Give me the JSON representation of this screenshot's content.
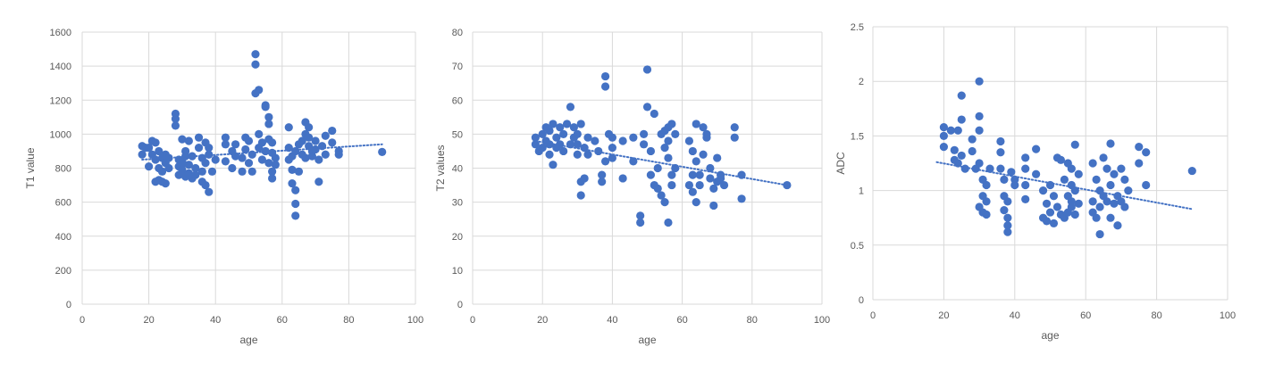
{
  "chart_data": [
    {
      "type": "scatter",
      "title": "",
      "xlabel": "age",
      "ylabel": "T1 value",
      "xlim": [
        0,
        100
      ],
      "ylim": [
        0,
        1600
      ],
      "xticks": [
        "0",
        "20",
        "40",
        "60",
        "80",
        "100"
      ],
      "yticks": [
        "0",
        "200",
        "400",
        "600",
        "800",
        "1000",
        "1200",
        "1400",
        "1600"
      ],
      "grid": true,
      "marker_color": "#4472C4",
      "trendline": {
        "style": "dotted-linear",
        "x": [
          18,
          90
        ],
        "y": [
          850,
          940
        ]
      },
      "series": [
        {
          "x": [
            18,
            18,
            19,
            20,
            20,
            21,
            21,
            22,
            22,
            22,
            23,
            23,
            23,
            24,
            24,
            24,
            25,
            25,
            25,
            26,
            26,
            28,
            28,
            28,
            29,
            29,
            29,
            30,
            30,
            30,
            30,
            31,
            31,
            31,
            32,
            32,
            32,
            33,
            33,
            34,
            34,
            35,
            35,
            36,
            36,
            36,
            37,
            37,
            37,
            38,
            38,
            38,
            39,
            40,
            43,
            43,
            43,
            45,
            45,
            46,
            46,
            48,
            48,
            49,
            49,
            50,
            50,
            51,
            51,
            52,
            52,
            52,
            53,
            53,
            53,
            54,
            54,
            55,
            55,
            55,
            56,
            56,
            56,
            56,
            57,
            57,
            57,
            57,
            58,
            58,
            62,
            62,
            62,
            63,
            63,
            63,
            64,
            64,
            64,
            64,
            65,
            65,
            66,
            66,
            67,
            67,
            67,
            68,
            68,
            68,
            69,
            69,
            70,
            70,
            71,
            71,
            72,
            73,
            73,
            75,
            75,
            77,
            77,
            90
          ],
          "y": [
            880,
            930,
            920,
            810,
            920,
            960,
            880,
            950,
            720,
            850,
            730,
            800,
            900,
            720,
            860,
            780,
            710,
            830,
            880,
            800,
            860,
            1120,
            1090,
            1050,
            850,
            760,
            810,
            970,
            840,
            820,
            790,
            900,
            750,
            870,
            960,
            770,
            820,
            740,
            870,
            800,
            760,
            980,
            920,
            860,
            720,
            780,
            950,
            700,
            830,
            920,
            660,
            880,
            780,
            850,
            980,
            840,
            940,
            900,
            800,
            870,
            940,
            780,
            860,
            980,
            910,
            830,
            960,
            880,
            780,
            1470,
            1410,
            1240,
            1000,
            1260,
            920,
            850,
            950,
            1160,
            1170,
            900,
            1100,
            1060,
            970,
            830,
            950,
            890,
            780,
            740,
            860,
            820,
            1040,
            920,
            850,
            790,
            710,
            870,
            670,
            590,
            520,
            900,
            940,
            780,
            960,
            880,
            1000,
            1070,
            860,
            930,
            980,
            1040,
            900,
            870,
            960,
            910,
            720,
            850,
            930,
            990,
            880,
            1020,
            950,
            880,
            900,
            895
          ]
        }
      ]
    },
    {
      "type": "scatter",
      "title": "",
      "xlabel": "age",
      "ylabel": "T2 values",
      "xlim": [
        0,
        100
      ],
      "ylim": [
        0,
        80
      ],
      "xticks": [
        "0",
        "20",
        "40",
        "60",
        "80",
        "100"
      ],
      "yticks": [
        "0",
        "10",
        "20",
        "30",
        "40",
        "50",
        "60",
        "70",
        "80"
      ],
      "grid": true,
      "marker_color": "#4472C4",
      "trendline": {
        "style": "dotted-linear",
        "x": [
          18,
          90
        ],
        "y": [
          48,
          35
        ]
      },
      "series": [
        {
          "x": [
            18,
            18,
            19,
            20,
            20,
            21,
            21,
            22,
            22,
            22,
            23,
            23,
            24,
            24,
            25,
            25,
            26,
            26,
            27,
            28,
            28,
            29,
            29,
            30,
            30,
            30,
            31,
            31,
            31,
            32,
            32,
            33,
            33,
            35,
            36,
            37,
            37,
            38,
            38,
            38,
            39,
            40,
            40,
            40,
            43,
            43,
            46,
            46,
            48,
            48,
            49,
            49,
            50,
            50,
            51,
            51,
            52,
            52,
            53,
            53,
            54,
            54,
            55,
            55,
            55,
            56,
            56,
            56,
            56,
            57,
            57,
            57,
            58,
            58,
            62,
            62,
            63,
            63,
            63,
            64,
            64,
            64,
            65,
            65,
            66,
            66,
            67,
            67,
            68,
            68,
            69,
            69,
            70,
            70,
            71,
            71,
            72,
            75,
            75,
            77,
            77,
            90
          ],
          "y": [
            47,
            49,
            45,
            46,
            50,
            48,
            52,
            44,
            47,
            51,
            41,
            53,
            46,
            49,
            47,
            52,
            45,
            50,
            53,
            58,
            47,
            49,
            52,
            44,
            50,
            47,
            36,
            32,
            53,
            37,
            46,
            44,
            49,
            48,
            45,
            38,
            36,
            67,
            64,
            42,
            50,
            49,
            46,
            43,
            48,
            37,
            49,
            42,
            26,
            24,
            47,
            50,
            69,
            58,
            45,
            38,
            56,
            35,
            34,
            40,
            50,
            32,
            51,
            46,
            30,
            24,
            52,
            48,
            43,
            38,
            35,
            53,
            50,
            40,
            48,
            35,
            45,
            38,
            33,
            53,
            42,
            30,
            35,
            38,
            44,
            52,
            49,
            50,
            37,
            40,
            34,
            29,
            36,
            43,
            37,
            38,
            35,
            52,
            49,
            38,
            31,
            35
          ]
        }
      ]
    },
    {
      "type": "scatter",
      "title": "",
      "xlabel": "age",
      "ylabel": "ADC",
      "xlim": [
        0,
        100
      ],
      "ylim": [
        0,
        2.5
      ],
      "xticks": [
        "0",
        "20",
        "40",
        "60",
        "80",
        "100"
      ],
      "yticks": [
        "0",
        "0.5",
        "1",
        "1.5",
        "2",
        "2.5"
      ],
      "grid": true,
      "marker_color": "#4472C4",
      "trendline": {
        "style": "dotted-linear",
        "x": [
          18,
          90
        ],
        "y": [
          1.26,
          0.83
        ]
      },
      "series": [
        {
          "x": [
            20,
            20,
            20,
            22,
            23,
            23,
            24,
            24,
            25,
            25,
            25,
            26,
            28,
            28,
            29,
            30,
            30,
            30,
            30,
            30,
            31,
            31,
            31,
            32,
            32,
            32,
            33,
            36,
            36,
            36,
            37,
            37,
            37,
            38,
            38,
            38,
            38,
            39,
            40,
            40,
            43,
            43,
            43,
            43,
            46,
            46,
            48,
            48,
            49,
            49,
            50,
            50,
            51,
            51,
            52,
            52,
            53,
            53,
            54,
            54,
            55,
            55,
            55,
            56,
            56,
            56,
            56,
            57,
            57,
            57,
            58,
            58,
            62,
            62,
            62,
            63,
            63,
            64,
            64,
            64,
            65,
            65,
            66,
            66,
            67,
            67,
            67,
            68,
            68,
            69,
            69,
            70,
            70,
            71,
            71,
            72,
            75,
            75,
            77,
            77,
            90
          ],
          "y": [
            1.58,
            1.5,
            1.4,
            1.55,
            1.37,
            1.28,
            1.55,
            1.25,
            1.87,
            1.65,
            1.32,
            1.2,
            1.47,
            1.36,
            1.2,
            2.0,
            1.68,
            1.55,
            1.25,
            0.85,
            1.1,
            0.95,
            0.8,
            1.05,
            0.9,
            0.78,
            1.2,
            1.45,
            1.35,
            1.2,
            1.1,
            0.95,
            0.82,
            0.9,
            0.75,
            0.68,
            0.62,
            1.17,
            1.1,
            1.05,
            1.3,
            1.2,
            1.05,
            0.92,
            1.38,
            1.15,
            1.0,
            0.75,
            0.88,
            0.72,
            1.05,
            0.8,
            0.95,
            0.7,
            1.3,
            0.85,
            1.28,
            0.78,
            1.1,
            0.75,
            1.25,
            0.95,
            0.8,
            1.2,
            1.05,
            0.9,
            0.85,
            1.42,
            1.0,
            0.78,
            1.15,
            0.88,
            1.25,
            0.9,
            0.8,
            1.1,
            0.75,
            1.0,
            0.85,
            0.6,
            1.3,
            0.95,
            1.2,
            0.9,
            1.43,
            1.05,
            0.75,
            1.15,
            0.88,
            0.95,
            0.68,
            1.2,
            0.9,
            1.1,
            0.85,
            1.0,
            1.4,
            1.25,
            1.35,
            1.05,
            1.18
          ]
        }
      ]
    }
  ]
}
